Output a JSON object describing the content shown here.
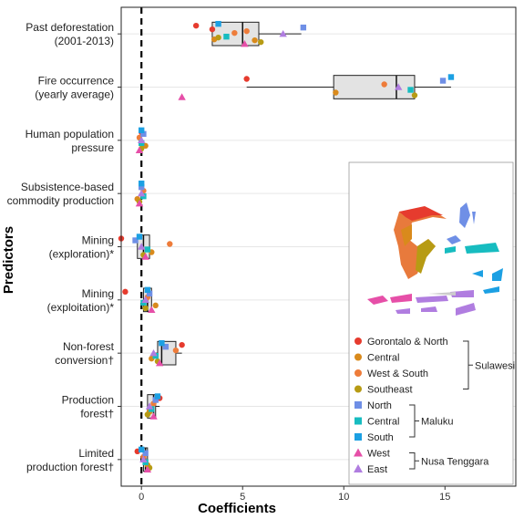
{
  "chart_data": {
    "type": "boxplot",
    "xlabel": "Coefficients",
    "ylabel": "Predictors",
    "xlim": [
      -1,
      18.5
    ],
    "xticks": [
      "0",
      "5",
      "10",
      "15"
    ],
    "grid": "horizontal",
    "zero_line": "dashed",
    "legend_position": "bottom-right",
    "predictors": [
      {
        "label": [
          "Past deforestation",
          "(2001-2013)"
        ],
        "box": {
          "q1": 3.5,
          "median": 5.0,
          "q3": 5.8,
          "whisker_low": 3.5,
          "whisker_high": 7.9
        },
        "points": [
          2.7,
          3.6,
          5.2,
          5.9,
          8.0,
          4.2,
          3.8,
          5.1,
          7.0,
          3.5,
          5.6,
          4.6,
          3.8
        ]
      },
      {
        "label": [
          "Fire occurrence",
          "(yearly average)"
        ],
        "box": {
          "q1": 9.5,
          "median": 12.6,
          "q3": 13.5,
          "whisker_low": 5.2,
          "whisker_high": 15.3
        },
        "points": [
          5.2,
          9.6,
          12.0,
          13.5,
          14.9,
          13.3,
          15.3,
          2.0,
          12.7
        ]
      },
      {
        "label": [
          "Human population",
          "pressure"
        ],
        "box": null,
        "points": [
          0.0,
          0.2,
          -0.1,
          0.0,
          0.1,
          0.0,
          0.0,
          -0.1,
          0.0
        ]
      },
      {
        "label": [
          "Subsistence-based",
          "commodity production"
        ],
        "box": null,
        "points": [
          0.0,
          -0.2,
          0.1,
          -0.1,
          0.0,
          0.1,
          0.0,
          -0.1,
          0.0
        ]
      },
      {
        "label": [
          "Mining",
          "(exploration)*"
        ],
        "box": {
          "q1": -0.2,
          "median": 0.1,
          "q3": 0.4,
          "whisker_low": -0.2,
          "whisker_high": 0.4
        },
        "points": [
          -1.0,
          0.5,
          1.4,
          0.1,
          -0.3,
          0.3,
          -0.1,
          0.2,
          0.0
        ]
      },
      {
        "label": [
          "Mining",
          "(exploitation)*"
        ],
        "box": {
          "q1": 0.1,
          "median": 0.3,
          "q3": 0.5,
          "whisker_low": 0.1,
          "whisker_high": 0.5
        },
        "points": [
          -0.8,
          0.7,
          0.3,
          0.2,
          0.4,
          0.1,
          0.3,
          0.5,
          0.2
        ]
      },
      {
        "label": [
          "Non-forest",
          "conversion†"
        ],
        "box": {
          "q1": 0.8,
          "median": 1.0,
          "q3": 1.7,
          "whisker_low": 0.6,
          "whisker_high": 2.0
        },
        "points": [
          2.0,
          0.5,
          1.7,
          0.8,
          1.2,
          0.7,
          1.0,
          0.9,
          0.6
        ]
      },
      {
        "label": [
          "Production",
          "forest†"
        ],
        "box": {
          "q1": 0.3,
          "median": 0.6,
          "q3": 0.7,
          "whisker_low": 0.3,
          "whisker_high": 0.9
        },
        "points": [
          0.9,
          0.4,
          0.6,
          0.3,
          0.7,
          0.5,
          0.8,
          0.6,
          0.4
        ]
      },
      {
        "label": [
          "Limited",
          "production forest†"
        ],
        "box": {
          "q1": 0.1,
          "median": 0.2,
          "q3": 0.3,
          "whisker_low": 0.1,
          "whisker_high": 0.3
        },
        "points": [
          -0.2,
          0.3,
          0.1,
          0.4,
          0.2,
          0.2,
          0.0,
          0.3,
          0.1
        ]
      }
    ],
    "legend": {
      "groups": [
        {
          "name": "Sulawesi",
          "entries": [
            {
              "label": "Gorontalo & North",
              "shape": "circle",
              "color": "#e63b2e"
            },
            {
              "label": "Central",
              "shape": "circle",
              "color": "#d98a1c"
            },
            {
              "label": "West & South",
              "shape": "circle",
              "color": "#ee7c3a"
            },
            {
              "label": "Southeast",
              "shape": "circle",
              "color": "#b79b14"
            }
          ]
        },
        {
          "name": "Maluku",
          "entries": [
            {
              "label": "North",
              "shape": "square",
              "color": "#6f8fe6"
            },
            {
              "label": "Central",
              "shape": "square",
              "color": "#17bcc0"
            },
            {
              "label": "South",
              "shape": "square",
              "color": "#1ca0e3"
            }
          ]
        },
        {
          "name": "Nusa Tenggara",
          "entries": [
            {
              "label": "West",
              "shape": "triangle",
              "color": "#e64fa8"
            },
            {
              "label": "East",
              "shape": "triangle",
              "color": "#b07de0"
            }
          ]
        }
      ]
    }
  }
}
